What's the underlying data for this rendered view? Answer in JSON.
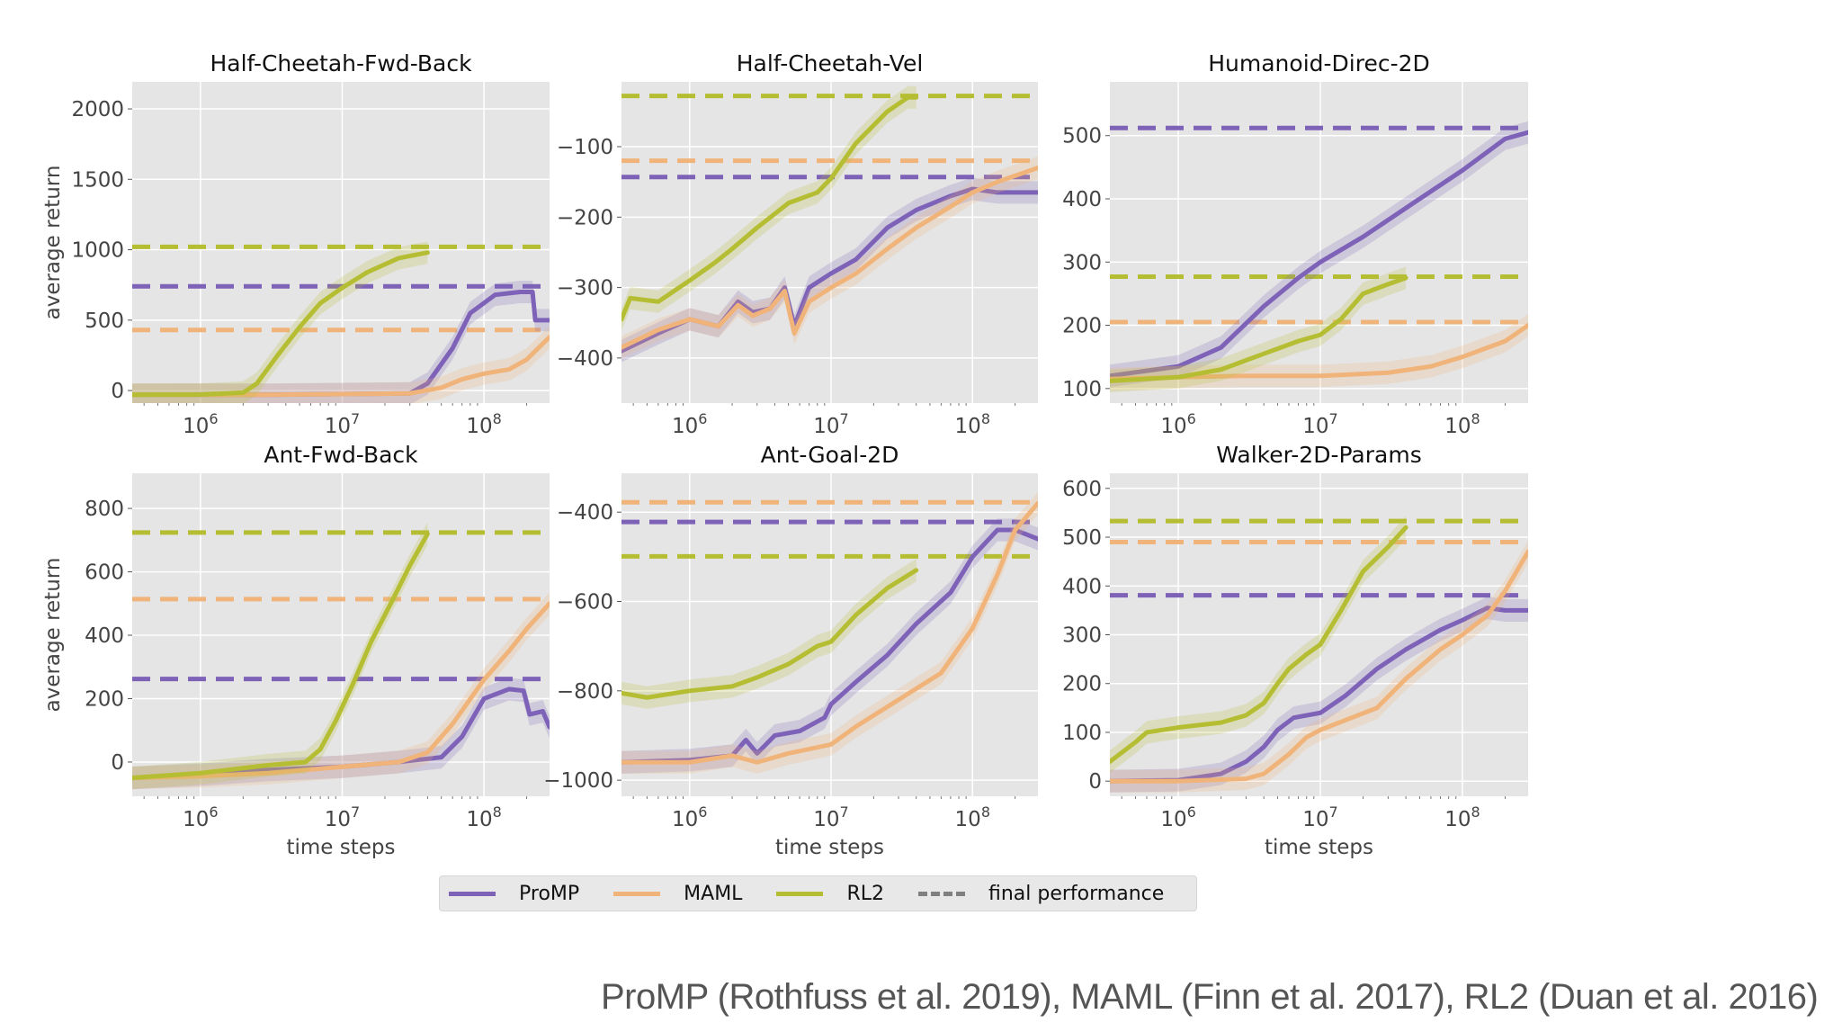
{
  "colors": {
    "ProMP": "#7d62b8",
    "MAML": "#f0b47a",
    "RL2": "#b5be32",
    "final": "#808080",
    "panel_bg": "#e5e5e5",
    "grid": "#ffffff"
  },
  "legend": {
    "items": [
      {
        "label": "ProMP",
        "color": "#7d62b8",
        "style": "solid"
      },
      {
        "label": "MAML",
        "color": "#f0b47a",
        "style": "solid"
      },
      {
        "label": "RL2",
        "color": "#b5be32",
        "style": "solid"
      },
      {
        "label": "final performance",
        "color": "#808080",
        "style": "dashed"
      }
    ]
  },
  "caption": "ProMP (Rothfuss et al. 2019), MAML (Finn et al. 2017), RL2 (Duan et al. 2016)",
  "chart_data": [
    {
      "type": "line",
      "title": "Half-Cheetah-Fwd-Back",
      "xlabel": "",
      "ylabel": "average return",
      "xscale": "log",
      "xlim": [
        330000,
        290000000
      ],
      "ylim": [
        -89,
        2192
      ],
      "xticks": [
        {
          "value": 1000000,
          "label": "10^6"
        },
        {
          "value": 10000000,
          "label": "10^7"
        },
        {
          "value": 100000000,
          "label": "10^8"
        }
      ],
      "yticks": [
        0,
        500,
        1000,
        1500,
        2000
      ],
      "final_performance": {
        "ProMP": 740,
        "MAML": 430,
        "RL2": 1020
      },
      "series": [
        {
          "name": "ProMP",
          "x": [
            330000,
            1000000,
            3000000,
            10000000,
            30000000,
            40000000,
            60000000,
            80000000,
            120000000,
            180000000,
            220000000,
            230000000,
            290000000
          ],
          "y": [
            -30,
            -30,
            -30,
            -25,
            -20,
            50,
            300,
            550,
            680,
            700,
            700,
            500,
            500
          ]
        },
        {
          "name": "MAML",
          "x": [
            330000,
            1000000,
            3000000,
            10000000,
            30000000,
            50000000,
            70000000,
            100000000,
            150000000,
            200000000,
            290000000
          ],
          "y": [
            -30,
            -30,
            -30,
            -25,
            -20,
            20,
            80,
            120,
            150,
            220,
            380
          ]
        },
        {
          "name": "RL2",
          "x": [
            330000,
            1000000,
            2000000,
            2500000,
            3500000,
            5000000,
            7000000,
            10000000,
            15000000,
            25000000,
            40000000
          ],
          "y": [
            -30,
            -28,
            -15,
            50,
            250,
            450,
            620,
            730,
            840,
            940,
            980
          ]
        }
      ]
    },
    {
      "type": "line",
      "title": "Half-Cheetah-Vel",
      "xlabel": "",
      "ylabel": "",
      "xscale": "log",
      "xlim": [
        330000,
        290000000
      ],
      "ylim": [
        -464,
        -8
      ],
      "xticks": [
        {
          "value": 1000000,
          "label": "10^6"
        },
        {
          "value": 10000000,
          "label": "10^7"
        },
        {
          "value": 100000000,
          "label": "10^8"
        }
      ],
      "yticks": [
        -400,
        -300,
        -200,
        -100
      ],
      "final_performance": {
        "ProMP": -143,
        "MAML": -120,
        "RL2": -28
      },
      "series": [
        {
          "name": "ProMP",
          "x": [
            330000,
            600000,
            1000000,
            1600000,
            2200000,
            2800000,
            3700000,
            4700000,
            5500000,
            7000000,
            10000000,
            15000000,
            25000000,
            40000000,
            70000000,
            100000000,
            150000000,
            290000000
          ],
          "y": [
            -390,
            -365,
            -345,
            -355,
            -320,
            -335,
            -330,
            -300,
            -355,
            -300,
            -280,
            -260,
            -215,
            -190,
            -170,
            -160,
            -165,
            -165
          ]
        },
        {
          "name": "MAML",
          "x": [
            330000,
            600000,
            1000000,
            1600000,
            2200000,
            2800000,
            3700000,
            4700000,
            5500000,
            7000000,
            10000000,
            15000000,
            25000000,
            40000000,
            70000000,
            100000000,
            150000000,
            290000000
          ],
          "y": [
            -385,
            -360,
            -345,
            -355,
            -325,
            -340,
            -330,
            -305,
            -365,
            -320,
            -300,
            -280,
            -245,
            -215,
            -185,
            -165,
            -150,
            -130
          ]
        },
        {
          "name": "RL2",
          "x": [
            330000,
            380000,
            600000,
            1000000,
            1500000,
            2000000,
            3000000,
            5000000,
            8000000,
            10000000,
            15000000,
            25000000,
            35000000,
            40000000
          ],
          "y": [
            -345,
            -315,
            -320,
            -290,
            -265,
            -245,
            -215,
            -180,
            -165,
            -145,
            -95,
            -50,
            -30,
            -30
          ]
        }
      ]
    },
    {
      "type": "line",
      "title": "Humanoid-Direc-2D",
      "xlabel": "",
      "ylabel": "",
      "xscale": "log",
      "xlim": [
        330000,
        290000000
      ],
      "ylim": [
        77,
        585
      ],
      "xticks": [
        {
          "value": 1000000,
          "label": "10^6"
        },
        {
          "value": 10000000,
          "label": "10^7"
        },
        {
          "value": 100000000,
          "label": "10^8"
        }
      ],
      "yticks": [
        100,
        200,
        300,
        400,
        500
      ],
      "final_performance": {
        "ProMP": 512,
        "MAML": 205,
        "RL2": 277
      },
      "series": [
        {
          "name": "ProMP",
          "x": [
            330000,
            1000000,
            2000000,
            4000000,
            7000000,
            10000000,
            20000000,
            50000000,
            100000000,
            200000000,
            290000000
          ],
          "y": [
            120,
            135,
            165,
            230,
            275,
            300,
            340,
            400,
            445,
            495,
            505
          ]
        },
        {
          "name": "MAML",
          "x": [
            330000,
            1000000,
            3000000,
            10000000,
            30000000,
            60000000,
            100000000,
            200000000,
            290000000
          ],
          "y": [
            115,
            118,
            120,
            120,
            125,
            135,
            150,
            175,
            200
          ]
        },
        {
          "name": "RL2",
          "x": [
            330000,
            1000000,
            2000000,
            4000000,
            7000000,
            10000000,
            14000000,
            20000000,
            30000000,
            40000000
          ],
          "y": [
            112,
            118,
            130,
            155,
            175,
            185,
            210,
            250,
            265,
            275
          ]
        }
      ]
    },
    {
      "type": "line",
      "title": "Ant-Fwd-Back",
      "xlabel": "time steps",
      "ylabel": "average return",
      "xscale": "log",
      "xlim": [
        330000,
        290000000
      ],
      "ylim": [
        -108,
        911
      ],
      "xticks": [
        {
          "value": 1000000,
          "label": "10^6"
        },
        {
          "value": 10000000,
          "label": "10^7"
        },
        {
          "value": 100000000,
          "label": "10^8"
        }
      ],
      "yticks": [
        0,
        200,
        400,
        600,
        800
      ],
      "final_performance": {
        "ProMP": 262,
        "MAML": 514,
        "RL2": 724
      },
      "series": [
        {
          "name": "ProMP",
          "x": [
            330000,
            1000000,
            3000000,
            10000000,
            25000000,
            50000000,
            70000000,
            100000000,
            150000000,
            190000000,
            210000000,
            260000000,
            290000000
          ],
          "y": [
            -50,
            -40,
            -25,
            -15,
            0,
            15,
            80,
            200,
            230,
            225,
            150,
            160,
            110
          ]
        },
        {
          "name": "MAML",
          "x": [
            330000,
            1000000,
            3000000,
            10000000,
            25000000,
            40000000,
            60000000,
            100000000,
            150000000,
            200000000,
            290000000
          ],
          "y": [
            -50,
            -45,
            -35,
            -15,
            0,
            30,
            120,
            260,
            350,
            420,
            500
          ]
        },
        {
          "name": "RL2",
          "x": [
            330000,
            1000000,
            3000000,
            5500000,
            7000000,
            9000000,
            12000000,
            16000000,
            22000000,
            30000000,
            40000000
          ],
          "y": [
            -50,
            -35,
            -10,
            0,
            40,
            130,
            250,
            380,
            500,
            620,
            720
          ]
        }
      ]
    },
    {
      "type": "line",
      "title": "Ant-Goal-2D",
      "xlabel": "time steps",
      "ylabel": "",
      "xscale": "log",
      "xlim": [
        330000,
        290000000
      ],
      "ylim": [
        -1036,
        -313
      ],
      "xticks": [
        {
          "value": 1000000,
          "label": "10^6"
        },
        {
          "value": 10000000,
          "label": "10^7"
        },
        {
          "value": 100000000,
          "label": "10^8"
        }
      ],
      "yticks": [
        -1000,
        -800,
        -600,
        -400
      ],
      "final_performance": {
        "ProMP": -422,
        "MAML": -378,
        "RL2": -499
      },
      "series": [
        {
          "name": "ProMP",
          "x": [
            330000,
            1000000,
            2000000,
            2500000,
            3000000,
            4000000,
            6000000,
            9000000,
            10000000,
            15000000,
            25000000,
            40000000,
            70000000,
            100000000,
            150000000,
            200000000,
            290000000
          ],
          "y": [
            -960,
            -955,
            -945,
            -910,
            -940,
            -900,
            -890,
            -860,
            -830,
            -780,
            -720,
            -650,
            -580,
            -500,
            -440,
            -440,
            -460
          ]
        },
        {
          "name": "MAML",
          "x": [
            330000,
            1000000,
            2000000,
            3000000,
            5000000,
            10000000,
            15000000,
            30000000,
            60000000,
            100000000,
            150000000,
            200000000,
            290000000
          ],
          "y": [
            -960,
            -960,
            -945,
            -960,
            -940,
            -920,
            -880,
            -820,
            -760,
            -660,
            -540,
            -440,
            -380
          ]
        },
        {
          "name": "RL2",
          "x": [
            330000,
            500000,
            1000000,
            2000000,
            3000000,
            5000000,
            8000000,
            10000000,
            15000000,
            25000000,
            40000000
          ],
          "y": [
            -805,
            -815,
            -800,
            -790,
            -770,
            -740,
            -700,
            -690,
            -630,
            -570,
            -530
          ]
        }
      ]
    },
    {
      "type": "line",
      "title": "Walker-2D-Params",
      "xlabel": "time steps",
      "ylabel": "",
      "xscale": "log",
      "xlim": [
        330000,
        290000000
      ],
      "ylim": [
        -31,
        631
      ],
      "xticks": [
        {
          "value": 1000000,
          "label": "10^6"
        },
        {
          "value": 10000000,
          "label": "10^7"
        },
        {
          "value": 100000000,
          "label": "10^8"
        }
      ],
      "yticks": [
        0,
        100,
        200,
        300,
        400,
        500,
        600
      ],
      "final_performance": {
        "ProMP": 381,
        "MAML": 490,
        "RL2": 533
      },
      "series": [
        {
          "name": "ProMP",
          "x": [
            330000,
            1000000,
            2000000,
            3000000,
            4000000,
            5000000,
            6500000,
            10000000,
            15000000,
            25000000,
            40000000,
            70000000,
            100000000,
            150000000,
            200000000,
            290000000
          ],
          "y": [
            0,
            2,
            15,
            40,
            70,
            105,
            130,
            140,
            175,
            230,
            270,
            310,
            330,
            355,
            350,
            350
          ]
        },
        {
          "name": "MAML",
          "x": [
            330000,
            1000000,
            3000000,
            4000000,
            6000000,
            8000000,
            10000000,
            15000000,
            25000000,
            40000000,
            70000000,
            100000000,
            150000000,
            200000000,
            290000000
          ],
          "y": [
            0,
            0,
            5,
            15,
            55,
            90,
            105,
            125,
            150,
            210,
            270,
            300,
            340,
            390,
            470
          ]
        },
        {
          "name": "RL2",
          "x": [
            330000,
            500000,
            600000,
            1000000,
            2000000,
            3000000,
            4000000,
            5000000,
            6000000,
            8000000,
            10000000,
            14000000,
            20000000,
            30000000,
            40000000
          ],
          "y": [
            40,
            80,
            100,
            110,
            120,
            135,
            160,
            200,
            230,
            260,
            280,
            350,
            430,
            480,
            520
          ]
        }
      ]
    }
  ]
}
